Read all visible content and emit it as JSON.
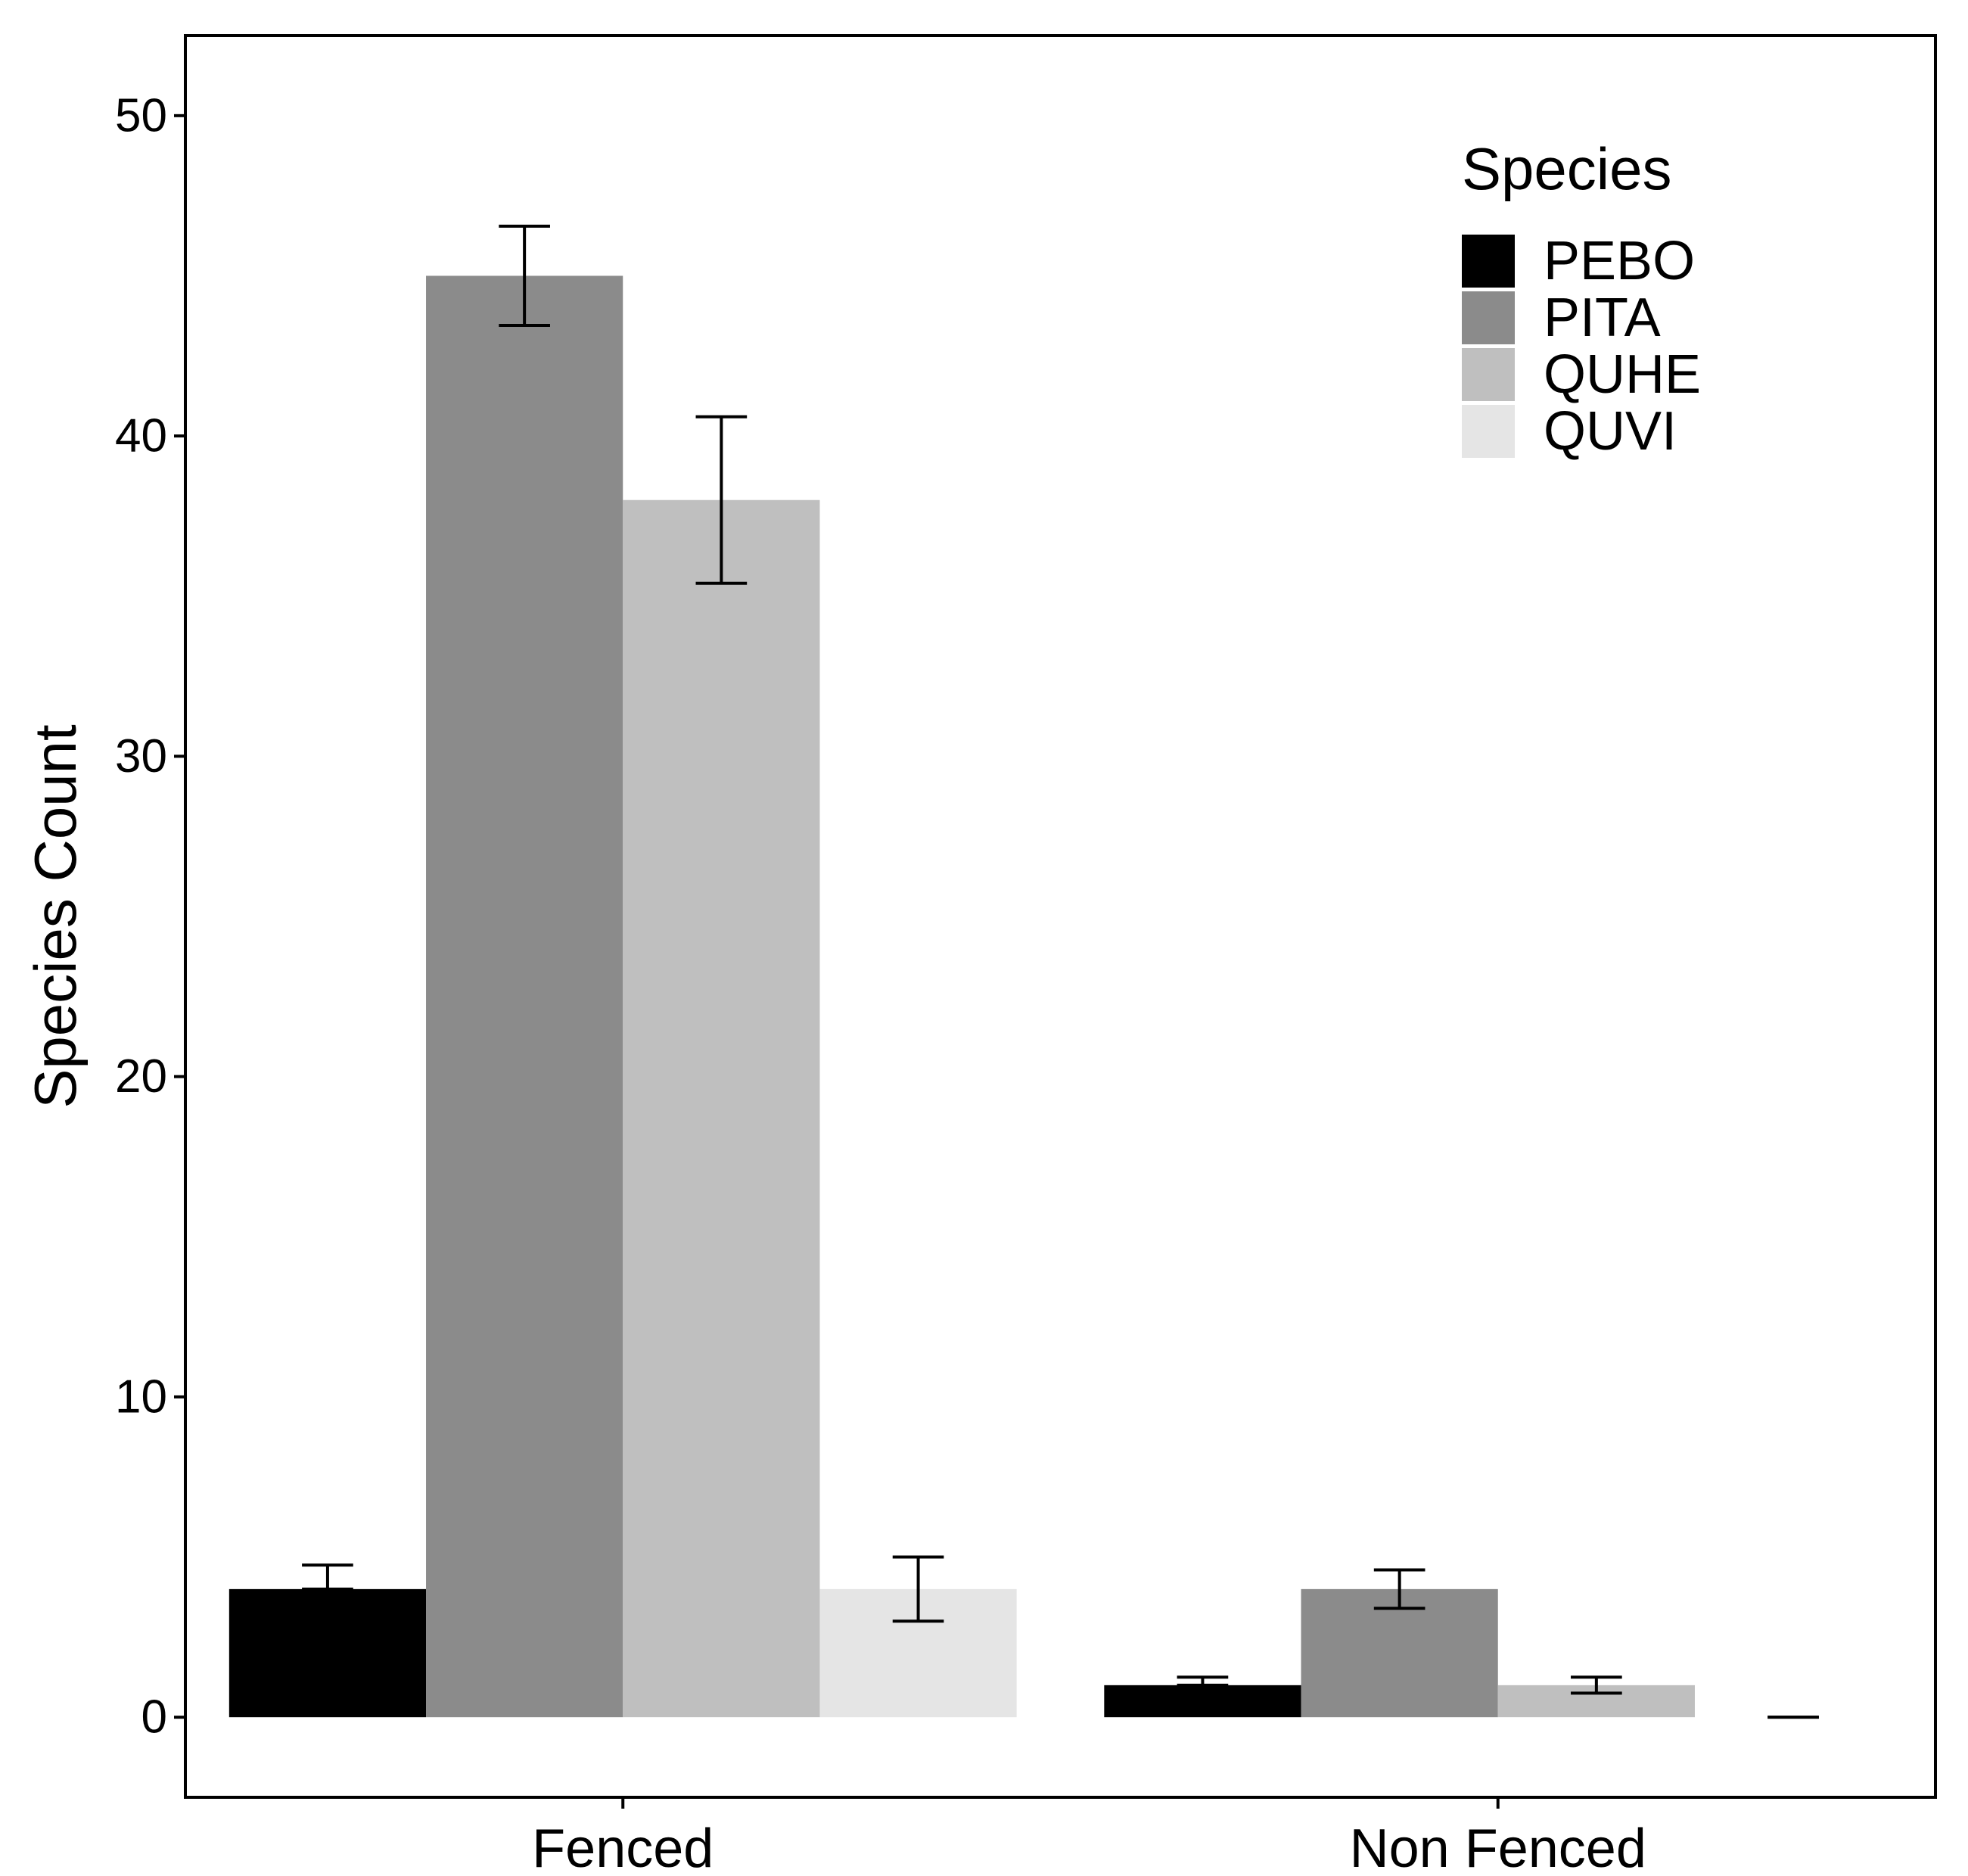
{
  "chart_data": {
    "type": "bar",
    "title": "",
    "xlabel": "",
    "ylabel": "Species Count",
    "ylim": [
      -2.5,
      52.5
    ],
    "yticks": [
      0,
      10,
      20,
      30,
      40,
      50
    ],
    "ytick_labels": [
      "0",
      "10",
      "20",
      "30",
      "40",
      "50"
    ],
    "grid": false,
    "categories": [
      "Fenced",
      "Non Fenced"
    ],
    "series": [
      {
        "name": "PEBO",
        "color": "#000000",
        "values": [
          4,
          1
        ],
        "error_low": [
          4,
          1
        ],
        "error_high": [
          4.75,
          1.25
        ]
      },
      {
        "name": "PITA",
        "color": "#8b8b8b",
        "values": [
          45,
          4
        ],
        "error_low": [
          43.45,
          3.4
        ],
        "error_high": [
          46.55,
          4.6
        ]
      },
      {
        "name": "QUHE",
        "color": "#bfbfbf",
        "values": [
          38,
          1
        ],
        "error_low": [
          35.4,
          0.75
        ],
        "error_high": [
          40.6,
          1.25
        ]
      },
      {
        "name": "QUVI",
        "color": "#e5e5e5",
        "values": [
          4,
          0
        ],
        "error_low": [
          3,
          0
        ],
        "error_high": [
          5,
          0
        ]
      }
    ],
    "legend": {
      "title": "Species",
      "position": "top-right",
      "entries": [
        "PEBO",
        "PITA",
        "QUHE",
        "QUVI"
      ]
    }
  }
}
